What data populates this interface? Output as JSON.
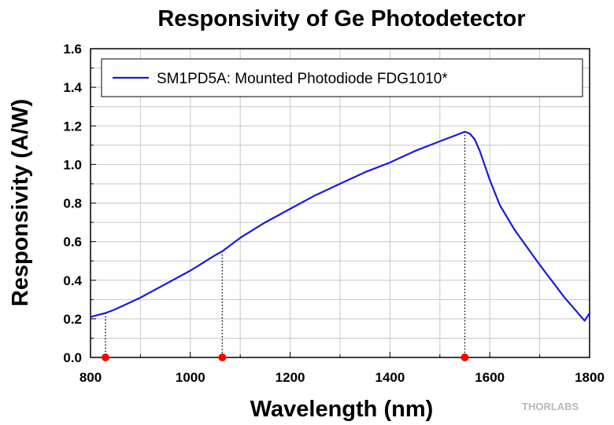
{
  "brand": "THORLABS",
  "chart_data": {
    "type": "line",
    "title": "Responsivity of Ge Photodetector",
    "xlabel": "Wavelength (nm)",
    "ylabel": "Responsivity (A/W)",
    "xlim": [
      800,
      1800
    ],
    "ylim": [
      0.0,
      1.6
    ],
    "xticks": [
      "800",
      "1000",
      "1200",
      "1400",
      "1600",
      "1800"
    ],
    "yticks": [
      "0.0",
      "0.2",
      "0.4",
      "0.6",
      "0.8",
      "1.0",
      "1.2",
      "1.4",
      "1.6"
    ],
    "grid": true,
    "legend_position": "top-right",
    "line_color": "#1a1adc",
    "marker_color": "#ff0000",
    "series": [
      {
        "name": "SM1PD5A: Mounted Photodiode FDG1010*",
        "x": [
          800,
          830,
          850,
          900,
          950,
          1000,
          1050,
          1064,
          1100,
          1150,
          1200,
          1250,
          1300,
          1350,
          1400,
          1450,
          1500,
          1520,
          1540,
          1550,
          1560,
          1570,
          1580,
          1600,
          1620,
          1650,
          1700,
          1750,
          1790,
          1800
        ],
        "y": [
          0.21,
          0.23,
          0.25,
          0.31,
          0.38,
          0.45,
          0.53,
          0.55,
          0.62,
          0.7,
          0.77,
          0.84,
          0.9,
          0.96,
          1.01,
          1.07,
          1.12,
          1.14,
          1.16,
          1.17,
          1.16,
          1.13,
          1.07,
          0.92,
          0.79,
          0.66,
          0.48,
          0.31,
          0.19,
          0.23
        ]
      }
    ],
    "markers": {
      "x": [
        830,
        1064,
        1550
      ],
      "y": [
        0.0,
        0.0,
        0.0
      ],
      "drop_lines_to_y": [
        0.23,
        0.55,
        1.17
      ]
    }
  }
}
